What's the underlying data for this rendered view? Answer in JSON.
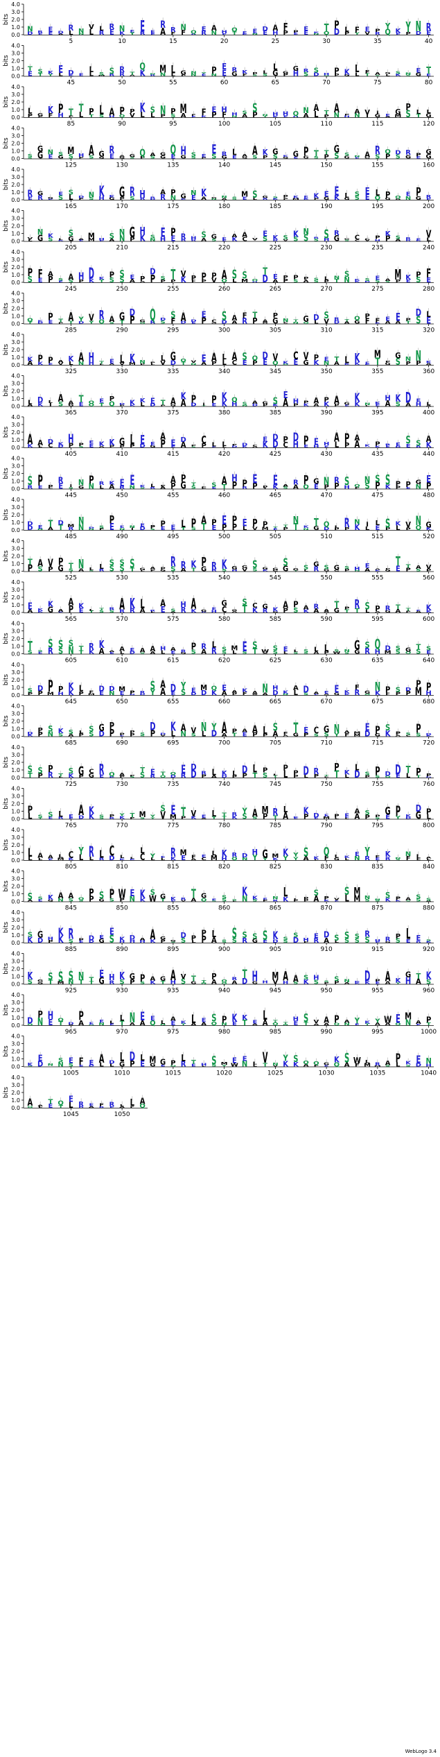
{
  "chart_data": {
    "type": "sequence-logo",
    "ylabel": "bits",
    "ylim": [
      0,
      4.0
    ],
    "yticks": [
      "0.0",
      "1.0",
      "2.0",
      "3.0",
      "4.0"
    ],
    "positions_per_row": 40,
    "total_positions": 1052,
    "colors": {
      "hydrophobic": "#000000",
      "polar": "#109648",
      "basic": "#1f1fd6",
      "acidic": "#1f1fd6",
      "neutral": "#109648"
    },
    "rows": [
      {
        "start": 1,
        "ticks": [
          5,
          10,
          15,
          20,
          25,
          30,
          35,
          40
        ],
        "seq": "NREDRNVLRNEEERRNQEAHQEEDAFPEKTPLFEPYKY"
      },
      {
        "start": 41,
        "ticks": [
          45,
          50,
          55,
          60,
          65,
          70,
          75,
          80
        ],
        "seq": "TSKEDELSSRTQNMLGNYPERKPLLGGRSHPKLFAGSNE"
      },
      {
        "start": 81,
        "ticks": [
          85,
          90,
          95,
          100,
          105,
          110,
          115,
          120
        ],
        "seq": "LGKPTTPLAPPKSNPMFFEHHSSNHHQNATAPAVIEGPLL"
      },
      {
        "start": 121,
        "ticks": [
          125,
          130,
          135,
          140,
          145,
          150,
          155,
          160
        ],
        "seq": "SGNSMHAGRAGQAGQHSEERLAAKGKGPTTGSNARQDRPGKE"
      },
      {
        "start": 161,
        "ticks": [
          165,
          170,
          175,
          180,
          185,
          190,
          195,
          200
        ],
        "seq": "RGGESDNKKGRHRAPGNKGNSMSGSPKEKEELSELPQEPRA"
      },
      {
        "start": 201,
        "ticks": [
          205,
          210,
          215,
          220,
          225,
          230,
          235,
          240
        ],
        "seq": "VNKLSAMHSNGHSEPRHSGEAAVEKSKNRSRGCCPKSRE"
      },
      {
        "start": 241,
        "ticks": [
          245,
          250,
          255,
          260,
          265,
          270,
          275,
          280
        ],
        "seq": "PFASAHDKPSEPDSTVPPPASSOTEPPPSLNSKSEAMK"
      },
      {
        "start": 281,
        "ticks": [
          285,
          290,
          295,
          300,
          305,
          310,
          315,
          320
        ],
        "seq": "QKPTAYVRAGDGQDSADECSAFTAPNTGDSRTQPFEEPDL"
      },
      {
        "start": 321,
        "ticks": [
          325,
          330,
          335,
          340,
          345,
          350,
          355,
          360
        ],
        "seq": "KPPAKAHTELKNPLGQVEALASQDVKCVPETLKEMPGNN"
      },
      {
        "start": 361,
        "ticks": [
          365,
          370,
          375,
          380,
          385,
          390,
          395,
          400
        ],
        "seq": "LDLAATQEPDKKETAKPIPKQSAGSEHPAPAGKNKHKDE"
      },
      {
        "start": 401,
        "ticks": [
          405,
          410,
          415,
          420,
          425,
          430,
          435,
          440
        ],
        "seq": "AADKHPEKKGLEEAEDPCLLPDCEDPDPEHAPAKPRESS"
      },
      {
        "start": 441,
        "ticks": [
          445,
          450,
          455,
          460,
          465,
          470,
          475,
          480
        ],
        "seq": "SPPRINPRKEEKLPAPTCSAHPEPEARPGNRSQNSSPPGE"
      },
      {
        "start": 481,
        "ticks": [
          485,
          490,
          495,
          500,
          505,
          510,
          515,
          520
        ],
        "seq": "DETDMNDSPENEPPELPAPEPEPPTTNKTQLRNILSKVNG"
      },
      {
        "start": 521,
        "ticks": [
          525,
          530,
          535,
          540,
          545,
          550,
          555,
          560
        ],
        "seq": "TAVPTNLLSSSGAPRRKPRKGGSGGSGSGSGSHEAPT"
      },
      {
        "start": 561,
        "ticks": [
          565,
          570,
          575,
          580,
          585,
          590,
          595,
          600
        ],
        "seq": "EKKAAKLTRAKLRASHAGEGGSCGKAPARATPRSPRTT"
      },
      {
        "start": 601,
        "ticks": [
          605,
          610,
          615,
          620,
          625,
          630,
          635,
          640
        ],
        "seq": "TSSSSTRKAAEAAHARPRLSMESWSELSLLSNGSQDSG"
      },
      {
        "start": 641,
        "ticks": [
          645,
          650,
          655,
          660,
          665,
          670,
          675,
          680
        ],
        "seq": "SDPPKLFDDMPRSADYEMQEAKANHKADAEEKFGNP"
      },
      {
        "start": 681,
        "ticks": [
          685,
          690,
          695,
          700,
          705,
          710,
          715,
          720
        ],
        "seq": "DPSKSLSGPPPSDDKAVNYAPAALSFTECGNAMEPSPSP"
      },
      {
        "start": 721,
        "ticks": [
          725,
          730,
          735,
          740,
          745,
          750,
          755,
          760
        ],
        "seq": "SSPTSGCRQAPTETQEDRLKLDLPLPPDRTPKLSPDDTPP"
      },
      {
        "start": 761,
        "ticks": [
          765,
          770,
          775,
          780,
          785,
          790,
          795,
          800
        ],
        "seq": "PSSLEAKSPYTMYSETVELTRYAMRLKKDEPEASPGPKD"
      },
      {
        "start": 801,
        "ticks": [
          805,
          810,
          815,
          820,
          825,
          830,
          835,
          840
        ],
        "seq": "LAALCYRLCLLLYERMFELKRDHGMKYSKQLKEYFKNN"
      },
      {
        "start": 841,
        "ticks": [
          845,
          850,
          855,
          860,
          865,
          870,
          875,
          880
        ],
        "seq": "SSKAAQPSPWEKSGKRTGESSKKENLLPSPVSMNNSPAS"
      },
      {
        "start": 881,
        "ticks": [
          885,
          890,
          895,
          900,
          905,
          910,
          915,
          920
        ],
        "seq": "SGHKRPDEEKDAAGGDPPLSSSSSKSSHEDSSSRHRPLE"
      },
      {
        "start": 921,
        "ticks": [
          925,
          930,
          935,
          940,
          945,
          950,
          955,
          960
        ],
        "seq": "KGSSSNTEHKGPAGAVTTPQRTHHMAASHSSNKDPAKGT"
      },
      {
        "start": 961,
        "ticks": [
          965,
          970,
          975,
          980,
          985,
          990,
          995,
          1000
        ],
        "seq": "DPHQDPEELLNEELAKLESPKKELTTHSVAPAYKYWEMAPLA"
      },
      {
        "start": 1001,
        "ticks": [
          1005,
          1010,
          1015,
          1020,
          1025,
          1030,
          1035,
          1040
        ],
        "seq": "KENSEFEADLDLMGPLTHSMEELVNYSQQGKSWLRAP"
      },
      {
        "start": 1041,
        "ticks": [
          1045,
          1050
        ],
        "seq": "AATQEREFRLL"
      }
    ]
  },
  "footer": "WebLogo 3.4"
}
